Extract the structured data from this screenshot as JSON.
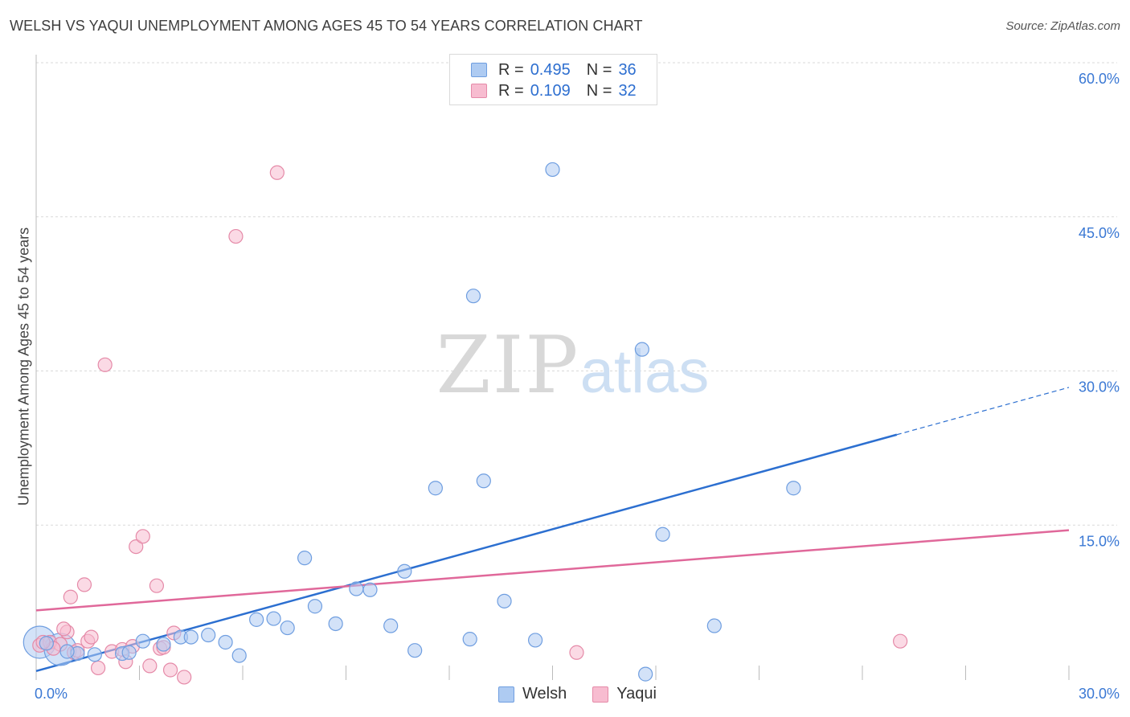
{
  "title": "WELSH VS YAQUI UNEMPLOYMENT AMONG AGES 45 TO 54 YEARS CORRELATION CHART",
  "source": "Source: ZipAtlas.com",
  "watermark": {
    "zip": "ZIP",
    "atlas": "atlas"
  },
  "legend": {
    "rows": [
      {
        "r_label": "R =",
        "r_value": "0.495",
        "n_label": "N =",
        "n_value": "36",
        "color": "#aecbf2",
        "border": "#6f9ee0"
      },
      {
        "r_label": "R =",
        "r_value": "0.109",
        "n_label": "N =",
        "n_value": "32",
        "color": "#f7bcd0",
        "border": "#e58aa8"
      }
    ]
  },
  "bottom_legend": [
    {
      "label": "Welsh",
      "color": "#aecbf2",
      "border": "#6f9ee0"
    },
    {
      "label": "Yaqui",
      "color": "#f7bcd0",
      "border": "#e58aa8"
    }
  ],
  "chart_data": {
    "type": "scatter",
    "title": "WELSH VS YAQUI UNEMPLOYMENT AMONG AGES 45 TO 54 YEARS CORRELATION CHART",
    "xlabel": "",
    "ylabel": "Unemployment Among Ages 45 to 54 years",
    "xlim": [
      0,
      30
    ],
    "ylim": [
      0,
      60
    ],
    "x_tick_labels": [
      "0.0%",
      "30.0%"
    ],
    "y_tick_labels": [
      "15.0%",
      "30.0%",
      "45.0%",
      "60.0%"
    ],
    "y_ticks": [
      15,
      30,
      45,
      60
    ],
    "x_gridlines": [
      0,
      3,
      6,
      9,
      12,
      15,
      18,
      21,
      24,
      27,
      30
    ],
    "series": [
      {
        "name": "Welsh",
        "color": "#aecbf2",
        "stroke": "#6f9ee0",
        "line_color": "#2c6fd0",
        "trend": {
          "x": [
            0,
            25
          ],
          "y": [
            0.8,
            23.8
          ],
          "dashed_to": [
            30,
            28.4
          ]
        },
        "points": [
          [
            0.3,
            3.5
          ],
          [
            1.2,
            2.5
          ],
          [
            1.7,
            2.4
          ],
          [
            2.5,
            2.5
          ],
          [
            3.1,
            3.7
          ],
          [
            3.7,
            3.4
          ],
          [
            4.2,
            4.1
          ],
          [
            4.5,
            4.1
          ],
          [
            5.0,
            4.3
          ],
          [
            5.5,
            3.6
          ],
          [
            5.9,
            2.3
          ],
          [
            6.4,
            5.8
          ],
          [
            6.9,
            5.9
          ],
          [
            7.3,
            5.0
          ],
          [
            7.8,
            11.8
          ],
          [
            8.1,
            7.1
          ],
          [
            8.7,
            5.4
          ],
          [
            9.3,
            8.8
          ],
          [
            9.7,
            8.7
          ],
          [
            10.3,
            5.2
          ],
          [
            10.7,
            10.5
          ],
          [
            11.0,
            2.8
          ],
          [
            11.6,
            18.6
          ],
          [
            12.6,
            3.9
          ],
          [
            12.7,
            37.3
          ],
          [
            13.0,
            19.3
          ],
          [
            13.6,
            7.6
          ],
          [
            14.5,
            3.8
          ],
          [
            15.0,
            49.6
          ],
          [
            17.6,
            32.1
          ],
          [
            17.7,
            0.5
          ],
          [
            18.2,
            14.1
          ],
          [
            19.7,
            5.2
          ],
          [
            22.0,
            18.6
          ],
          [
            0.9,
            2.7
          ],
          [
            2.7,
            2.6
          ]
        ]
      },
      {
        "name": "Yaqui",
        "color": "#f7bcd0",
        "stroke": "#e58aa8",
        "line_color": "#e0689a",
        "trend": {
          "x": [
            0,
            30
          ],
          "y": [
            6.7,
            14.5
          ]
        },
        "points": [
          [
            0.1,
            3.3
          ],
          [
            0.4,
            3.6
          ],
          [
            0.7,
            3.4
          ],
          [
            0.9,
            4.6
          ],
          [
            1.0,
            8.0
          ],
          [
            1.1,
            2.6
          ],
          [
            1.4,
            9.2
          ],
          [
            1.5,
            3.7
          ],
          [
            1.6,
            4.1
          ],
          [
            1.8,
            1.1
          ],
          [
            2.0,
            30.6
          ],
          [
            2.2,
            2.7
          ],
          [
            2.5,
            2.9
          ],
          [
            2.6,
            1.7
          ],
          [
            2.9,
            12.9
          ],
          [
            3.1,
            13.9
          ],
          [
            3.3,
            1.3
          ],
          [
            3.5,
            9.1
          ],
          [
            3.6,
            3.0
          ],
          [
            3.9,
            0.9
          ],
          [
            4.0,
            4.5
          ],
          [
            4.3,
            0.2
          ],
          [
            5.8,
            43.1
          ],
          [
            7.0,
            49.3
          ],
          [
            0.5,
            3.0
          ],
          [
            1.2,
            2.8
          ],
          [
            15.7,
            2.6
          ],
          [
            25.1,
            3.7
          ],
          [
            0.8,
            4.9
          ],
          [
            2.8,
            3.2
          ],
          [
            0.2,
            3.6
          ],
          [
            3.7,
            3.1
          ]
        ]
      }
    ],
    "large_points": [
      {
        "series": "Welsh",
        "x": 0.1,
        "y": 3.6
      },
      {
        "series": "Welsh",
        "x": 0.7,
        "y": 2.9
      }
    ]
  }
}
